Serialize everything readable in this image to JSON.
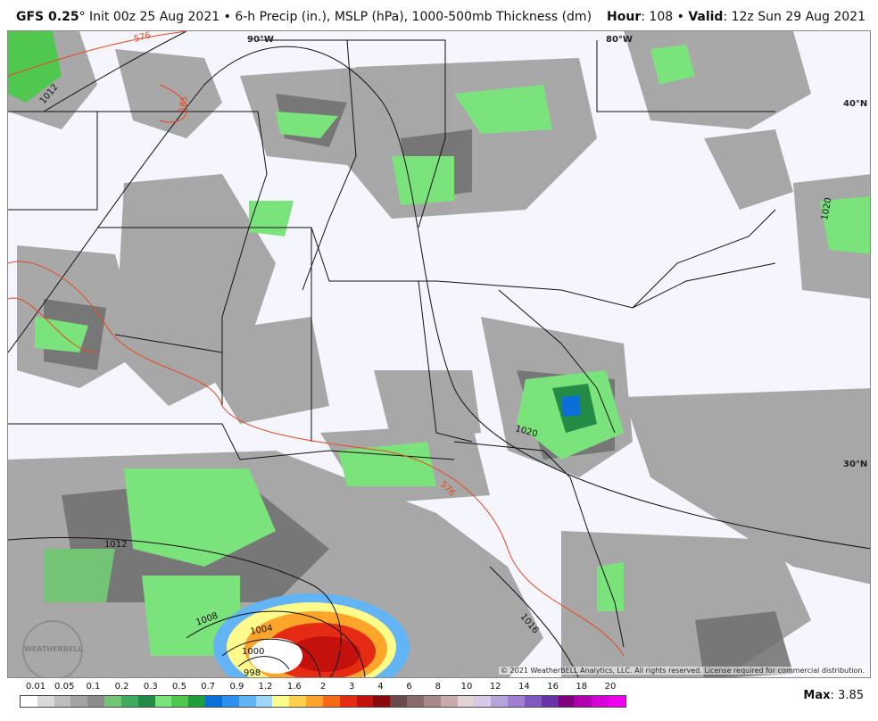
{
  "header": {
    "model": "GFS 0.25",
    "degree": "°",
    "init": "Init 00z 25 Aug 2021",
    "sep": "•",
    "products": "6-h Precip (in.), MSLP (hPa), 1000-500mb Thickness (dm)",
    "hour_label": "Hour",
    "hour_value": ": 108",
    "valid_label": "Valid",
    "valid_value": ": 12z Sun 29 Aug 2021"
  },
  "map": {
    "lon_labels": [
      "90°W",
      "80°W"
    ],
    "lat_labels": [
      "40°N",
      "30°N"
    ],
    "isobar_labels": [
      "1012",
      "1020",
      "1020",
      "1012",
      "1008",
      "1004",
      "1000",
      "998",
      "1016"
    ],
    "thickness_labels": [
      "576",
      "585",
      "576"
    ],
    "watermark": "WEATHERBELL",
    "copyright": "© 2021 WeatherBELL Analytics, LLC. All rights reserved. License required for commercial distribution."
  },
  "legend": {
    "ticks": [
      "0.01",
      "0.05",
      "0.1",
      "0.2",
      "0.3",
      "0.5",
      "0.7",
      "0.9",
      "1.2",
      "1.6",
      "2",
      "3",
      "4",
      "6",
      "8",
      "10",
      "12",
      "14",
      "16",
      "18",
      "20"
    ],
    "colors": [
      "#ffffff",
      "#d9d9d9",
      "#bdbdbd",
      "#a3a3a3",
      "#8c8c8c",
      "#74c476",
      "#41ab5d",
      "#238b45",
      "#7be37b",
      "#50c850",
      "#1f9f3b",
      "#0a6fd8",
      "#2b90ee",
      "#62b4f5",
      "#a0d6fb",
      "#fffc8c",
      "#ffd24d",
      "#ffa529",
      "#f86a16",
      "#e62b14",
      "#c4110e",
      "#8a0a0a",
      "#6a4a4a",
      "#8a6a6a",
      "#a98a8a",
      "#c8aaaa",
      "#e2d4d4",
      "#d9c9e8",
      "#b7a3dc",
      "#9f80d0",
      "#8058c0",
      "#6a32a8",
      "#800080",
      "#b000b0",
      "#d800d8",
      "#f000f0"
    ],
    "max_label": "Max",
    "max_value": ": 3.85"
  }
}
